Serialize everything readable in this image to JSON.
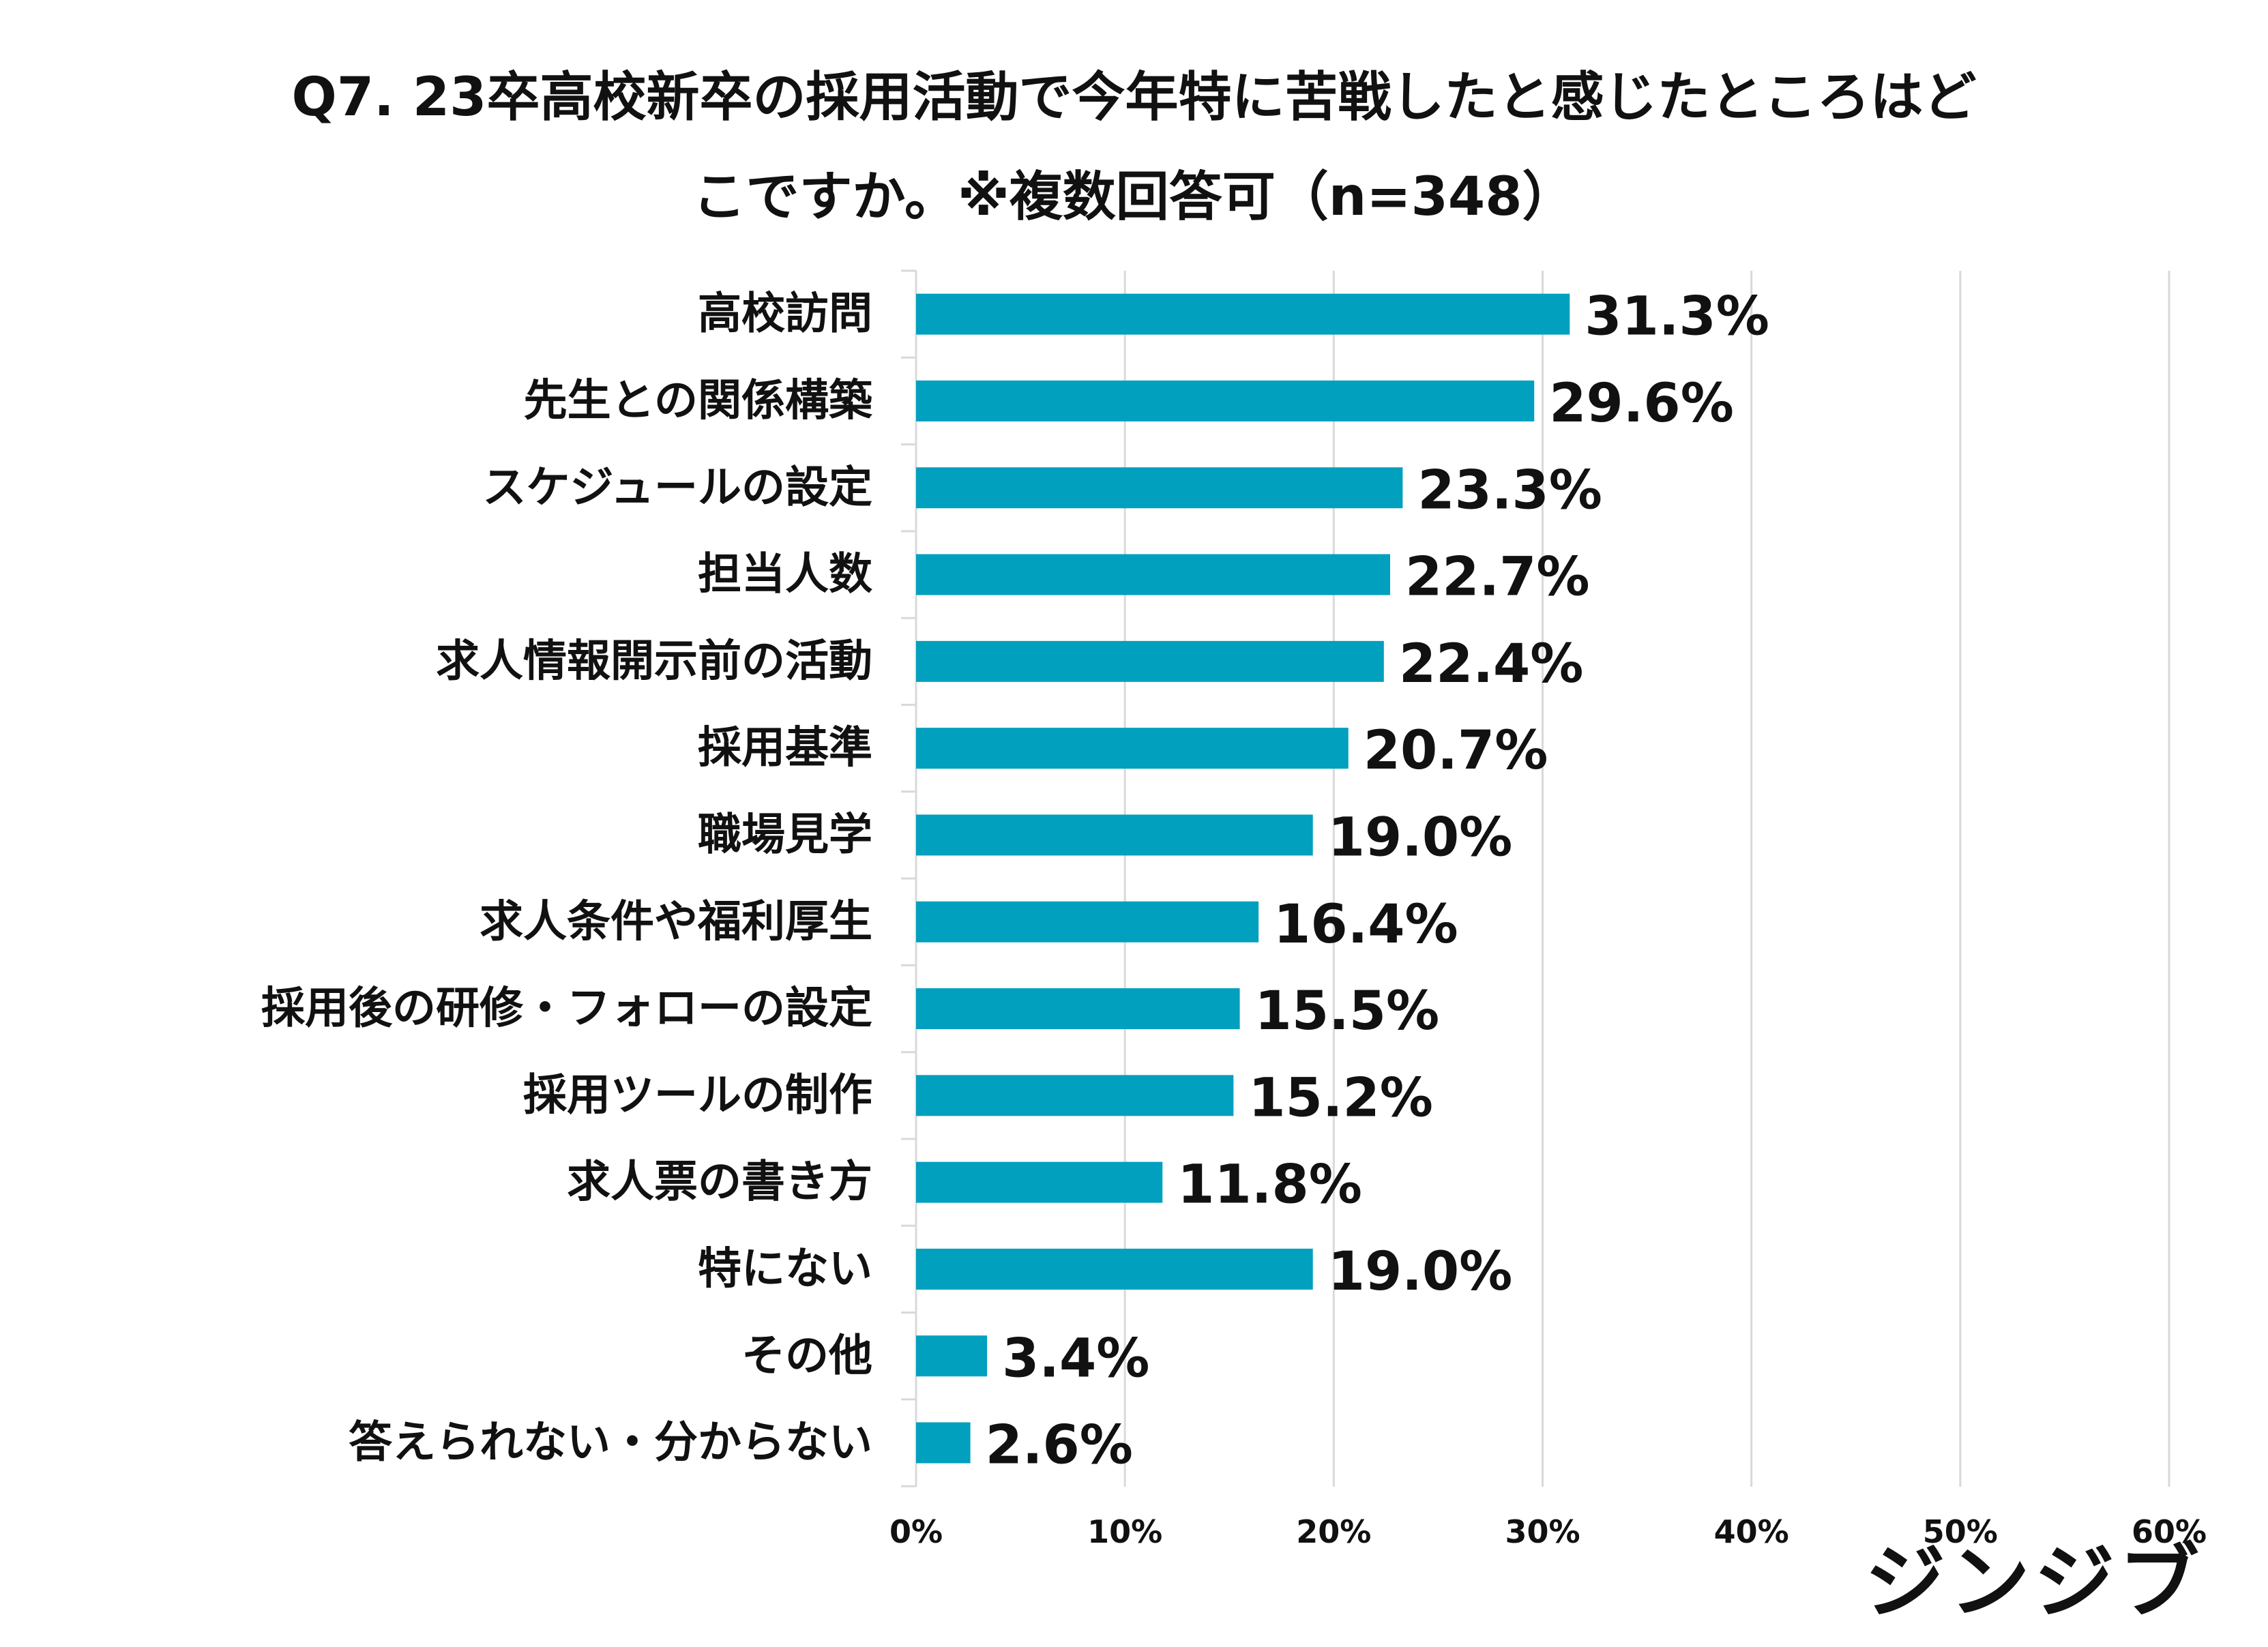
{
  "chart_data": {
    "type": "bar",
    "orientation": "horizontal",
    "title_lines": [
      "Q7. 23卒高校新卒の採用活動で今年特に苦戦したと感じたところはど",
      "こですか。※複数回答可（n=348）"
    ],
    "categories": [
      "高校訪問",
      "先生との関係構築",
      "スケジュールの設定",
      "担当人数",
      "求人情報開示前の活動",
      "採用基準",
      "職場見学",
      "求人条件や福利厚生",
      "採用後の研修・フォローの設定",
      "採用ツールの制作",
      "求人票の書き方",
      "特にない",
      "その他",
      "答えられない・分からない"
    ],
    "values": [
      31.3,
      29.6,
      23.3,
      22.7,
      22.4,
      20.7,
      19.0,
      16.4,
      15.5,
      15.2,
      11.8,
      19.0,
      3.4,
      2.6
    ],
    "value_labels": [
      "31.3%",
      "29.6%",
      "23.3%",
      "22.7%",
      "22.4%",
      "20.7%",
      "19.0%",
      "16.4%",
      "15.5%",
      "15.2%",
      "11.8%",
      "19.0%",
      "3.4%",
      "2.6%"
    ],
    "xlim": [
      0,
      60
    ],
    "x_ticks": [
      0,
      10,
      20,
      30,
      40,
      50,
      60
    ],
    "x_tick_labels": [
      "0%",
      "10%",
      "20%",
      "30%",
      "40%",
      "50%",
      "60%"
    ],
    "grid": true,
    "legend": "none",
    "bar_color": "#00A0BE",
    "grid_color": "#D9D9D9"
  },
  "brand": {
    "logo_text": "ジンジブ"
  }
}
